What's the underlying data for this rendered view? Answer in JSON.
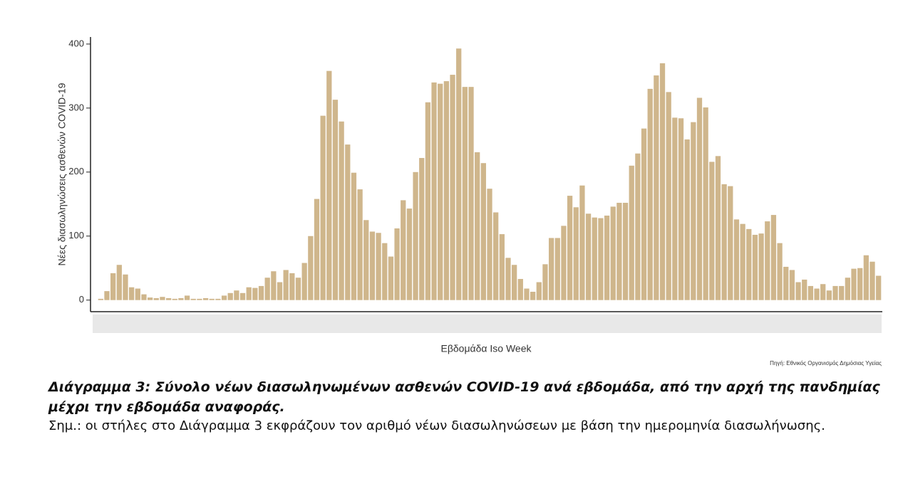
{
  "chart_data": {
    "type": "bar",
    "y_label": "Νέες διασωληνώσεις ασθενών COVID-19",
    "x_label": "Εβδομάδα Iso Week",
    "source": "Πηγή: Εθνικός Οργανισμός Δημόσιας Υγείας",
    "values": [
      2,
      14,
      42,
      55,
      40,
      20,
      18,
      9,
      4,
      3,
      5,
      3,
      2,
      3,
      7,
      2,
      2,
      3,
      2,
      2,
      7,
      11,
      15,
      11,
      20,
      19,
      22,
      35,
      45,
      28,
      47,
      42,
      35,
      58,
      100,
      158,
      288,
      358,
      313,
      279,
      243,
      199,
      173,
      125,
      107,
      105,
      89,
      68,
      112,
      156,
      143,
      200,
      222,
      309,
      340,
      338,
      342,
      352,
      393,
      333,
      333,
      231,
      214,
      174,
      137,
      103,
      66,
      55,
      33,
      18,
      13,
      28,
      56,
      97,
      97,
      116,
      163,
      145,
      179,
      135,
      129,
      128,
      132,
      146,
      152,
      152,
      210,
      229,
      268,
      330,
      351,
      370,
      325,
      285,
      284,
      251,
      278,
      316,
      301,
      216,
      225,
      181,
      178,
      126,
      119,
      111,
      102,
      104,
      123,
      133,
      89,
      52,
      47,
      28,
      32,
      22,
      18,
      25,
      15,
      22,
      22,
      35,
      49,
      50,
      70,
      60,
      38
    ],
    "color": "#cfb68c",
    "ylim": [
      -17,
      411
    ],
    "yticks": [
      0,
      100,
      200,
      300,
      400
    ],
    "grid": false
  },
  "caption": "Διάγραμμα 3: Σύνολο νέων διασωληνωμένων ασθενών COVID-19 ανά εβδομάδα, από την αρχή της πανδημίας μέχρι την εβδομάδα αναφοράς.",
  "note": "Σημ.: οι στήλες στο Διάγραμμα 3 εκφράζουν τον αριθμό νέων διασωληνώσεων με βάση την ημερομηνία διασωλήνωσης."
}
